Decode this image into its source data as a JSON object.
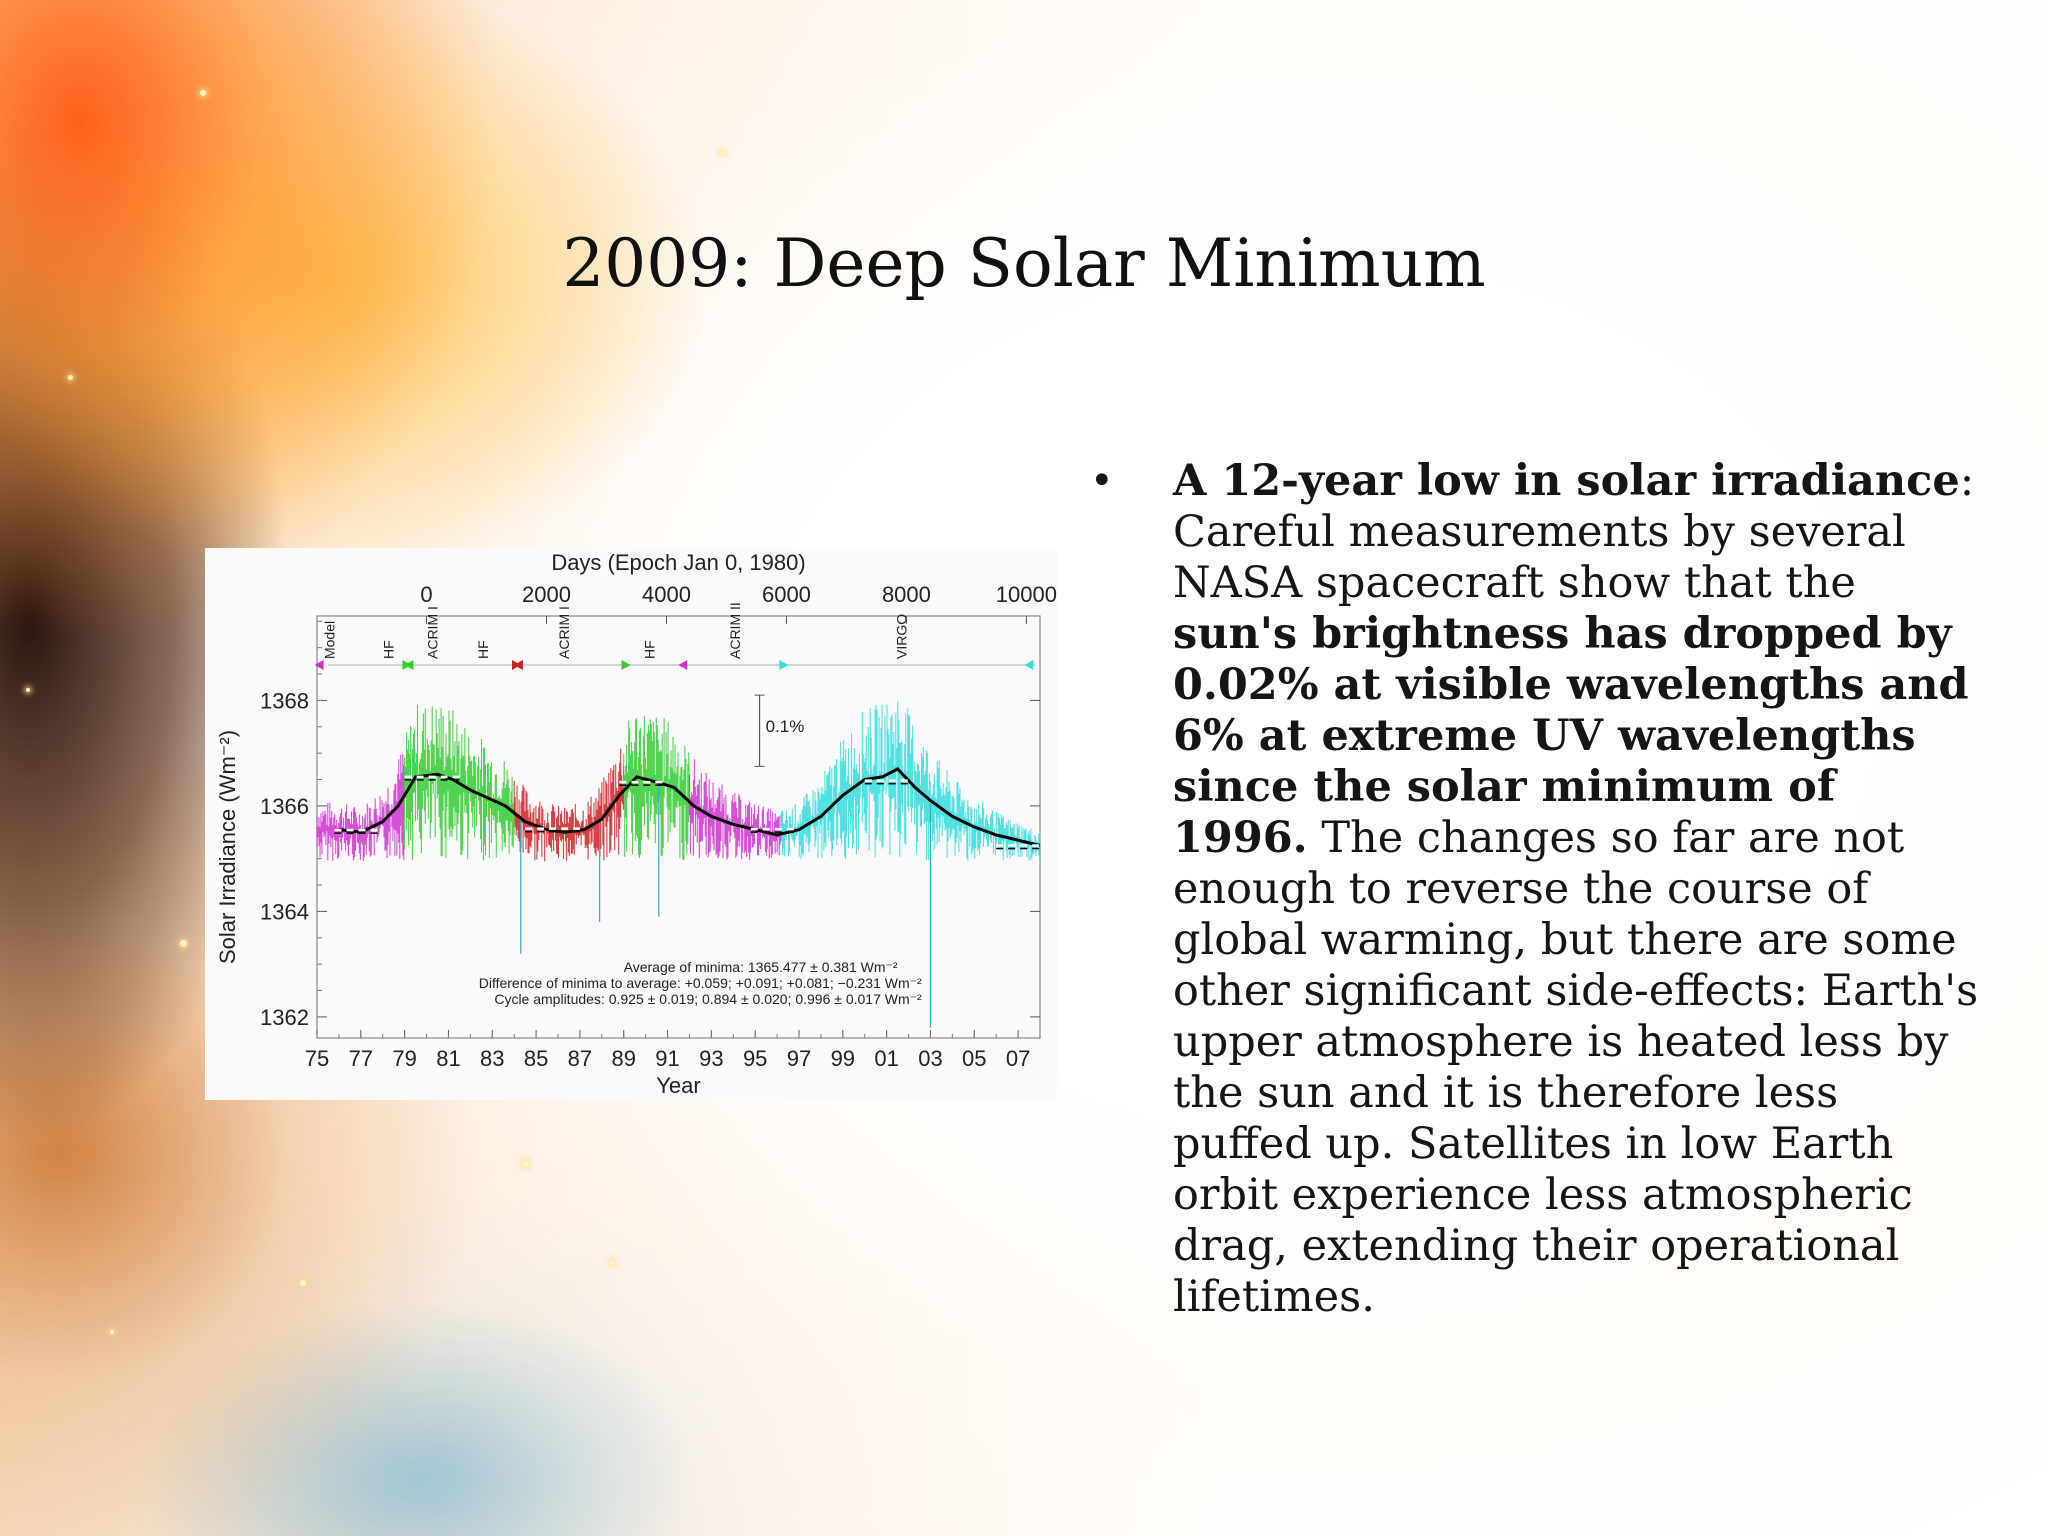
{
  "slide": {
    "title": "2009: Deep Solar Minimum"
  },
  "bullet": {
    "marker": "•",
    "lead_bold": "A 12-year low in solar irradiance",
    "lead_colon": ":",
    "text_1": "Careful measurements by several NASA spacecraft show that the",
    "bold_middle": "sun's brightness has dropped by 0.02% at visible wavelengths and 6% at extreme UV wavelengths since the solar minimum of 1996.",
    "text_2": "The changes so far are not enough to reverse the course of global warming, but there are some other significant side-effects: Earth's upper atmosphere is heated less by the sun and it is therefore less puffed up. Satellites in low Earth orbit experience less atmospheric drag, extending their operational lifetimes."
  },
  "chart_data": {
    "type": "line",
    "title": "",
    "top_axis_label": "Days (Epoch Jan 0, 1980)",
    "top_ticks": [
      "0",
      "2000",
      "4000",
      "6000",
      "8000",
      "10000"
    ],
    "xlabel": "Year",
    "x_ticks": [
      "75",
      "77",
      "79",
      "81",
      "83",
      "85",
      "87",
      "89",
      "91",
      "93",
      "95",
      "97",
      "99",
      "01",
      "03",
      "05",
      "07"
    ],
    "ylabel": "Solar Irradiance (Wm⁻²)",
    "y_ticks": [
      "1362",
      "1364",
      "1366",
      "1368"
    ],
    "xlim": [
      1975,
      2008
    ],
    "ylim": [
      1361.6,
      1369.6
    ],
    "instruments": [
      "Model",
      "HF",
      "ACRIM I",
      "HF",
      "ACRIM I",
      "HF",
      "ACRIM II",
      "VIRGO"
    ],
    "scale_bar_label": "0.1%",
    "annotations": [
      "Average of minima:  1365.477 ± 0.381 Wm⁻²",
      "Difference of minima to average: +0.059; +0.091; +0.081; −0.231 Wm⁻²",
      "Cycle amplitudes:  0.925 ± 0.019; 0.894 ± 0.020; 0.996 ± 0.017 Wm⁻²"
    ],
    "series": [
      {
        "color": "#000000",
        "x": [
          1976.0,
          1977.0,
          1978.0,
          1978.7,
          1979.5,
          1980.5,
          1981.2,
          1982.0,
          1982.8,
          1983.6,
          1984.5,
          1985.5,
          1986.3,
          1987.2,
          1988.0,
          1988.8,
          1989.6,
          1990.5,
          1991.3,
          1992.2,
          1993.0,
          1994.0,
          1995.0,
          1996.0,
          1997.0,
          1998.0,
          1999.0,
          2000.0,
          2000.8,
          2001.5,
          2002.3,
          2003.0,
          2004.0,
          2005.0,
          2006.0,
          2007.0,
          2008.0
        ],
        "y": [
          1365.55,
          1365.5,
          1365.7,
          1366.0,
          1366.55,
          1366.6,
          1366.5,
          1366.3,
          1366.15,
          1366.0,
          1365.7,
          1365.55,
          1365.5,
          1365.55,
          1365.75,
          1366.2,
          1366.55,
          1366.45,
          1366.35,
          1366.0,
          1365.8,
          1365.65,
          1365.55,
          1365.45,
          1365.55,
          1365.8,
          1366.2,
          1366.5,
          1366.55,
          1366.7,
          1366.35,
          1366.1,
          1365.8,
          1365.6,
          1365.45,
          1365.35,
          1365.25
        ]
      }
    ],
    "minima_levels": [
      {
        "x": [
          1975.8,
          1977.8
        ],
        "y": 1365.54
      },
      {
        "x": [
          1984.5,
          1987.0
        ],
        "y": 1365.57
      },
      {
        "x": [
          1994.8,
          1996.8
        ],
        "y": 1365.56
      },
      {
        "x": [
          2006.0,
          2008.0
        ],
        "y": 1365.25
      }
    ],
    "maxima_levels": [
      {
        "x": [
          1979.0,
          1981.5
        ],
        "y": 1366.55
      },
      {
        "x": [
          1988.8,
          1991.0
        ],
        "y": 1366.45
      },
      {
        "x": [
          2000.0,
          2002.0
        ],
        "y": 1366.48
      }
    ],
    "colored_segments": [
      {
        "color": "#cc33cc",
        "x": [
          1975.0,
          1979.0
        ]
      },
      {
        "color": "#33cc33",
        "x": [
          1979.0,
          1984.0
        ]
      },
      {
        "color": "#cc2222",
        "x": [
          1984.0,
          1989.0
        ]
      },
      {
        "color": "#33cc33",
        "x": [
          1989.0,
          1992.0
        ]
      },
      {
        "color": "#cc33cc",
        "x": [
          1992.0,
          1996.2
        ]
      },
      {
        "color": "#33dddd",
        "x": [
          1996.2,
          2008.0
        ]
      }
    ]
  }
}
